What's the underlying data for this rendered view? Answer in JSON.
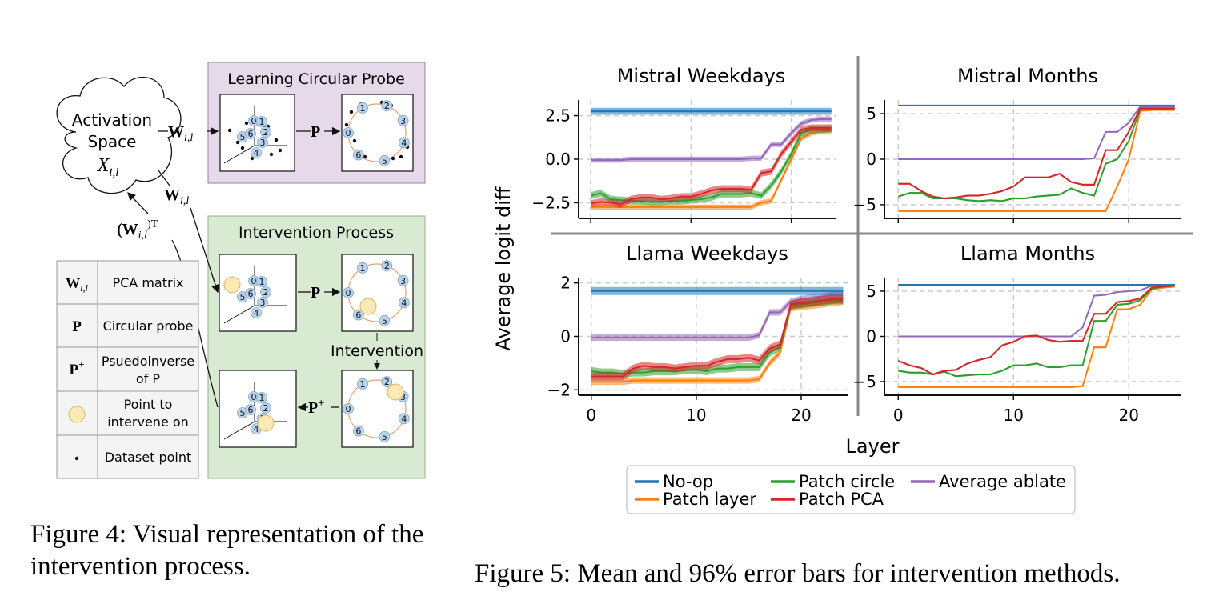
{
  "figure4": {
    "cloud_label_line1": "Activation",
    "cloud_label_line2": "Space",
    "cloud_label_math": "X",
    "cloud_label_sub": "i,l",
    "w_label": "W",
    "w_sub": "i,l",
    "wt_label": "(W",
    "wt_sub": "i,l",
    "wt_sup": ")T",
    "p_label": "P",
    "pplus_label": "P",
    "pplus_sup": "+",
    "learning_title": "Learning Circular Probe",
    "intervention_title": "Intervention Process",
    "intervention_step": "Intervention",
    "digits": [
      "0",
      "1",
      "2",
      "3",
      "4",
      "5",
      "6"
    ],
    "legend": [
      {
        "symbol": "W_{i,l}",
        "desc": "PCA matrix"
      },
      {
        "symbol": "P",
        "desc": "Circular probe"
      },
      {
        "symbol": "P+",
        "desc_line1": "Psuedoinverse",
        "desc_line2": "of P"
      },
      {
        "symbol": "circle",
        "desc_line1": "Point to",
        "desc_line2": "intervene on"
      },
      {
        "symbol": "dot",
        "desc": "Dataset point"
      }
    ],
    "colors": {
      "learning_bg": "#e6d9ea",
      "intervention_bg": "#d9ead3",
      "point_fill": "#b9d3ec",
      "highlight": "#fbe9b6",
      "circle_line": "#e8a46b"
    }
  },
  "figure5": {
    "ylabel": "Average logit diff",
    "xlabel": "Layer",
    "legend": [
      "No-op",
      "Patch layer",
      "Patch circle",
      "Patch PCA",
      "Average ablate"
    ],
    "chart_data": [
      {
        "type": "line",
        "title": "Mistral Weekdays",
        "ylim": [
          -3.4,
          3.4
        ],
        "yticks": [
          -2.5,
          0.0,
          2.5
        ],
        "ytick_labels": [
          "−2.5",
          "0.0",
          "2.5"
        ],
        "xticks": [
          0,
          10,
          20
        ],
        "grid": true,
        "x": [
          0,
          1,
          2,
          3,
          4,
          5,
          6,
          7,
          8,
          9,
          10,
          11,
          12,
          13,
          14,
          15,
          16,
          17,
          18,
          19,
          20,
          21,
          22,
          23,
          24
        ],
        "series": [
          {
            "name": "No-op",
            "color": "#1f77b4",
            "band": 0.2,
            "values": [
              2.75,
              2.75,
              2.75,
              2.75,
              2.75,
              2.75,
              2.75,
              2.75,
              2.75,
              2.75,
              2.75,
              2.75,
              2.75,
              2.75,
              2.75,
              2.75,
              2.75,
              2.75,
              2.75,
              2.75,
              2.75,
              2.75,
              2.75,
              2.75,
              2.75
            ]
          },
          {
            "name": "Patch layer",
            "color": "#ff7f0e",
            "band": 0.15,
            "values": [
              -2.75,
              -2.75,
              -2.75,
              -2.75,
              -2.75,
              -2.75,
              -2.75,
              -2.75,
              -2.75,
              -2.75,
              -2.75,
              -2.75,
              -2.75,
              -2.75,
              -2.75,
              -2.75,
              -2.75,
              -2.5,
              -2.4,
              -1.2,
              0.0,
              1.2,
              1.5,
              1.6,
              1.6
            ]
          },
          {
            "name": "Patch circle",
            "color": "#2ca02c",
            "band": 0.2,
            "values": [
              -2.1,
              -1.95,
              -2.3,
              -2.35,
              -2.4,
              -2.4,
              -2.45,
              -2.45,
              -2.4,
              -2.4,
              -2.35,
              -2.3,
              -2.2,
              -2.0,
              -2.0,
              -2.0,
              -1.95,
              -2.1,
              -1.5,
              -0.7,
              0.3,
              1.5,
              1.7,
              1.7,
              1.75
            ]
          },
          {
            "name": "Patch PCA",
            "color": "#d62728",
            "band": 0.2,
            "values": [
              -2.55,
              -2.45,
              -2.5,
              -2.6,
              -2.3,
              -2.2,
              -2.2,
              -2.3,
              -2.25,
              -2.15,
              -2.15,
              -2.0,
              -1.8,
              -1.7,
              -1.7,
              -1.7,
              -1.75,
              -0.8,
              -0.7,
              0.3,
              1.0,
              1.7,
              1.8,
              1.8,
              1.8
            ]
          },
          {
            "name": "Average ablate",
            "color": "#9467bd",
            "band": 0.15,
            "values": [
              -0.05,
              -0.05,
              -0.05,
              -0.05,
              0.0,
              0.0,
              0.0,
              0.0,
              0.0,
              0.0,
              0.0,
              0.0,
              0.0,
              0.0,
              0.0,
              0.0,
              0.05,
              0.05,
              0.85,
              0.85,
              1.5,
              2.05,
              2.25,
              2.3,
              2.3
            ]
          }
        ]
      },
      {
        "type": "line",
        "title": "Mistral Months",
        "ylim": [
          -6.5,
          6.5
        ],
        "yticks": [
          -5,
          0,
          5
        ],
        "ytick_labels": [
          "−5",
          "0",
          "5"
        ],
        "xticks": [
          0,
          10,
          20
        ],
        "grid": true,
        "x": [
          0,
          1,
          2,
          3,
          4,
          5,
          6,
          7,
          8,
          9,
          10,
          11,
          12,
          13,
          14,
          15,
          16,
          17,
          18,
          19,
          20,
          21,
          22,
          23,
          24
        ],
        "series": [
          {
            "name": "No-op",
            "color": "#1f77b4",
            "band": 0.05,
            "values": [
              5.9,
              5.9,
              5.9,
              5.9,
              5.9,
              5.9,
              5.9,
              5.9,
              5.9,
              5.9,
              5.9,
              5.9,
              5.9,
              5.9,
              5.9,
              5.9,
              5.9,
              5.9,
              5.9,
              5.9,
              5.9,
              5.9,
              5.9,
              5.9,
              5.9
            ]
          },
          {
            "name": "Patch layer",
            "color": "#ff7f0e",
            "band": 0.1,
            "values": [
              -5.7,
              -5.7,
              -5.7,
              -5.7,
              -5.7,
              -5.7,
              -5.7,
              -5.7,
              -5.7,
              -5.7,
              -5.7,
              -5.7,
              -5.7,
              -5.7,
              -5.7,
              -5.7,
              -5.7,
              -5.7,
              -5.7,
              -3.0,
              0.0,
              5.3,
              5.4,
              5.4,
              5.4
            ]
          },
          {
            "name": "Patch circle",
            "color": "#2ca02c",
            "band": 0.1,
            "values": [
              -4.1,
              -3.7,
              -3.7,
              -4.3,
              -4.3,
              -4.3,
              -4.5,
              -4.6,
              -4.5,
              -4.6,
              -4.3,
              -4.3,
              -4.1,
              -4.0,
              -3.9,
              -3.2,
              -3.7,
              -4.0,
              -0.5,
              0.0,
              2.0,
              5.5,
              5.5,
              5.5,
              5.5
            ]
          },
          {
            "name": "Patch PCA",
            "color": "#d62728",
            "band": 0.1,
            "values": [
              -2.7,
              -2.7,
              -3.5,
              -4.1,
              -4.3,
              -4.2,
              -4.0,
              -4.0,
              -3.8,
              -3.5,
              -3.0,
              -2.0,
              -2.0,
              -2.0,
              -1.6,
              -2.5,
              -2.8,
              -2.8,
              1.0,
              1.0,
              3.0,
              5.6,
              5.6,
              5.6,
              5.6
            ]
          },
          {
            "name": "Average ablate",
            "color": "#9467bd",
            "band": 0.05,
            "values": [
              0.0,
              0.0,
              0.0,
              0.0,
              0.0,
              0.0,
              0.0,
              0.0,
              0.0,
              0.0,
              0.0,
              0.0,
              0.0,
              0.0,
              0.0,
              0.0,
              0.0,
              0.1,
              3.0,
              3.0,
              4.0,
              5.8,
              5.8,
              5.8,
              5.8
            ]
          }
        ]
      },
      {
        "type": "line",
        "title": "Llama Weekdays",
        "ylim": [
          -2.2,
          2.2
        ],
        "yticks": [
          -2,
          0,
          2
        ],
        "ytick_labels": [
          "−2",
          "0",
          "2"
        ],
        "xticks": [
          0,
          10,
          20
        ],
        "xtick_labels": [
          "0",
          "10",
          "20"
        ],
        "grid": true,
        "x": [
          0,
          1,
          2,
          3,
          4,
          5,
          6,
          7,
          8,
          9,
          10,
          11,
          12,
          13,
          14,
          15,
          16,
          17,
          18,
          19,
          20,
          21,
          22,
          23,
          24
        ],
        "series": [
          {
            "name": "No-op",
            "color": "#1f77b4",
            "band": 0.15,
            "values": [
              1.7,
              1.7,
              1.7,
              1.7,
              1.7,
              1.7,
              1.7,
              1.7,
              1.7,
              1.7,
              1.7,
              1.7,
              1.7,
              1.7,
              1.7,
              1.7,
              1.7,
              1.7,
              1.7,
              1.7,
              1.7,
              1.7,
              1.7,
              1.7,
              1.7
            ]
          },
          {
            "name": "Patch layer",
            "color": "#ff7f0e",
            "band": 0.12,
            "values": [
              -1.7,
              -1.7,
              -1.7,
              -1.7,
              -1.65,
              -1.65,
              -1.65,
              -1.65,
              -1.65,
              -1.65,
              -1.65,
              -1.65,
              -1.65,
              -1.65,
              -1.65,
              -1.65,
              -1.6,
              -1.0,
              -0.6,
              1.05,
              1.1,
              1.15,
              1.2,
              1.25,
              1.3
            ]
          },
          {
            "name": "Patch circle",
            "color": "#2ca02c",
            "band": 0.15,
            "values": [
              -1.3,
              -1.35,
              -1.35,
              -1.4,
              -1.35,
              -1.35,
              -1.3,
              -1.3,
              -1.3,
              -1.25,
              -1.25,
              -1.3,
              -1.2,
              -1.2,
              -1.15,
              -1.15,
              -1.15,
              -0.6,
              -0.4,
              1.15,
              1.2,
              1.25,
              1.3,
              1.35,
              1.35
            ]
          },
          {
            "name": "Patch PCA",
            "color": "#d62728",
            "band": 0.15,
            "values": [
              -1.5,
              -1.5,
              -1.5,
              -1.5,
              -1.2,
              -1.1,
              -1.15,
              -1.15,
              -1.2,
              -1.15,
              -1.1,
              -1.1,
              -0.95,
              -0.85,
              -0.85,
              -0.8,
              -0.9,
              -0.45,
              -0.3,
              1.2,
              1.25,
              1.3,
              1.35,
              1.4,
              1.4
            ]
          },
          {
            "name": "Average ablate",
            "color": "#9467bd",
            "band": 0.12,
            "values": [
              -0.05,
              -0.05,
              -0.05,
              -0.05,
              -0.05,
              -0.05,
              -0.05,
              -0.05,
              -0.05,
              -0.05,
              -0.05,
              -0.05,
              -0.05,
              -0.05,
              -0.05,
              -0.05,
              0.05,
              0.9,
              0.9,
              1.3,
              1.4,
              1.45,
              1.5,
              1.55,
              1.55
            ]
          }
        ]
      },
      {
        "type": "line",
        "title": "Llama Months",
        "ylim": [
          -6.5,
          6.5
        ],
        "yticks": [
          -5,
          0,
          5
        ],
        "ytick_labels": [
          "−5",
          "0",
          "5"
        ],
        "xticks": [
          0,
          10,
          20
        ],
        "xtick_labels": [
          "0",
          "10",
          "20"
        ],
        "grid": true,
        "x": [
          0,
          1,
          2,
          3,
          4,
          5,
          6,
          7,
          8,
          9,
          10,
          11,
          12,
          13,
          14,
          15,
          16,
          17,
          18,
          19,
          20,
          21,
          22,
          23,
          24
        ],
        "series": [
          {
            "name": "No-op",
            "color": "#1f77b4",
            "band": 0.05,
            "values": [
              5.7,
              5.7,
              5.7,
              5.7,
              5.7,
              5.7,
              5.7,
              5.7,
              5.7,
              5.7,
              5.7,
              5.7,
              5.7,
              5.7,
              5.7,
              5.7,
              5.7,
              5.7,
              5.7,
              5.7,
              5.7,
              5.7,
              5.7,
              5.7,
              5.7
            ]
          },
          {
            "name": "Patch layer",
            "color": "#ff7f0e",
            "band": 0.1,
            "values": [
              -5.6,
              -5.6,
              -5.6,
              -5.6,
              -5.6,
              -5.6,
              -5.6,
              -5.6,
              -5.6,
              -5.6,
              -5.6,
              -5.6,
              -5.6,
              -5.6,
              -5.6,
              -5.6,
              -5.5,
              -1.2,
              -1.2,
              3.0,
              3.0,
              3.5,
              5.2,
              5.4,
              5.5
            ]
          },
          {
            "name": "Patch circle",
            "color": "#2ca02c",
            "band": 0.1,
            "values": [
              -3.8,
              -4.0,
              -4.0,
              -4.2,
              -3.9,
              -4.4,
              -4.3,
              -4.2,
              -4.2,
              -3.8,
              -3.2,
              -3.2,
              -3.0,
              -3.4,
              -3.4,
              -3.2,
              -3.2,
              1.7,
              1.7,
              3.5,
              3.6,
              4.0,
              5.3,
              5.5,
              5.6
            ]
          },
          {
            "name": "Patch PCA",
            "color": "#d62728",
            "band": 0.1,
            "values": [
              -2.7,
              -3.2,
              -3.5,
              -4.2,
              -3.8,
              -3.7,
              -3.0,
              -2.6,
              -2.3,
              -1.0,
              -0.6,
              0.0,
              0.1,
              -0.4,
              -0.6,
              -0.5,
              -0.5,
              2.5,
              2.5,
              3.8,
              3.9,
              4.2,
              5.4,
              5.5,
              5.6
            ]
          },
          {
            "name": "Average ablate",
            "color": "#9467bd",
            "band": 0.05,
            "values": [
              0.0,
              0.0,
              0.0,
              0.0,
              0.0,
              0.0,
              0.0,
              0.0,
              0.0,
              0.0,
              0.0,
              0.0,
              0.0,
              0.0,
              0.0,
              0.0,
              1.0,
              4.5,
              4.6,
              4.9,
              5.0,
              5.1,
              5.6,
              5.7,
              5.7
            ]
          }
        ]
      }
    ]
  },
  "captions": {
    "fig4": "Figure 4: Visual representation of the intervention process.",
    "fig5": "Figure 5: Mean and 96% error bars for intervention methods."
  }
}
